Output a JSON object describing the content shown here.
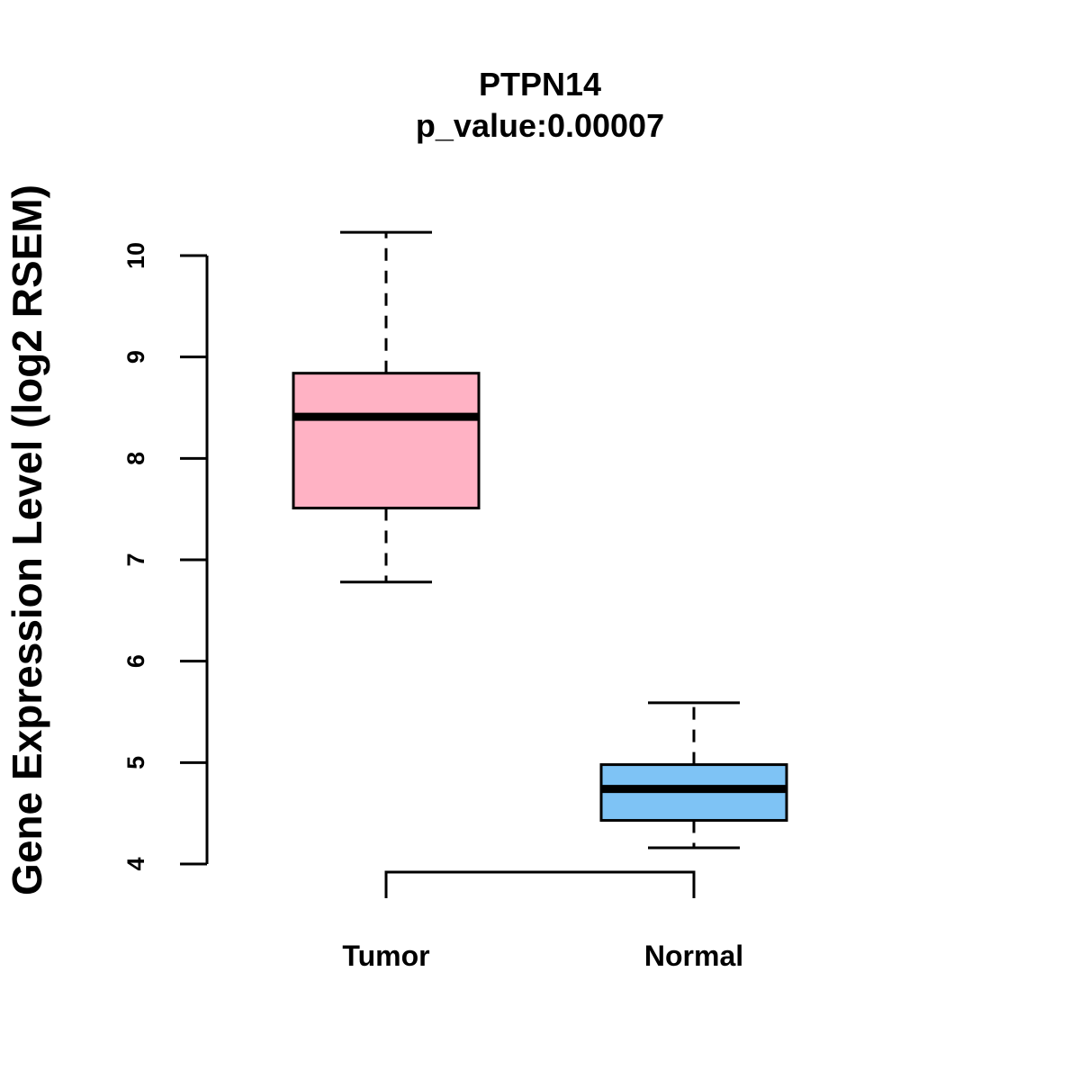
{
  "chart_data": {
    "type": "box",
    "title": "PTPN14",
    "subtitle": "p_value:0.00007",
    "ylabel": "Gene Expression Level (log2 RSEM)",
    "xlabel": "",
    "ylim": [
      4,
      10
    ],
    "yticks": [
      "4",
      "5",
      "6",
      "7",
      "8",
      "9",
      "10"
    ],
    "categories": [
      "Tumor",
      "Normal"
    ],
    "boxes": [
      {
        "category": "Tumor",
        "whisker_low": 6.78,
        "q1": 7.51,
        "median": 8.41,
        "q3": 8.84,
        "whisker_high": 10.23,
        "color": "#FFB2C4"
      },
      {
        "category": "Normal",
        "whisker_low": 4.16,
        "q1": 4.43,
        "median": 4.74,
        "q3": 4.98,
        "whisker_high": 5.59,
        "color": "#7EC3F5"
      }
    ],
    "comparison_bracket": {
      "between": [
        "Tumor",
        "Normal"
      ]
    }
  }
}
